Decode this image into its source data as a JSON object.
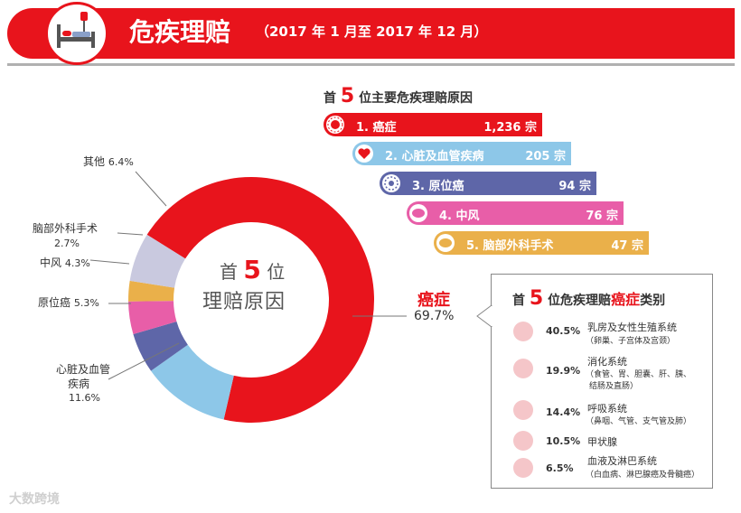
{
  "header": {
    "title": "危疾理赔",
    "subtitle": "（2017 年 1 月至 2017 年 12 月）"
  },
  "top5": {
    "title_pre": "首",
    "title_num": "5",
    "title_post": "位主要危疾理赔原因",
    "items": [
      {
        "label": "1. 癌症",
        "value": "1,236 宗",
        "color": "#e8141c"
      },
      {
        "label": "2. 心脏及血管疾病",
        "value": "205 宗",
        "color": "#8dc7e8"
      },
      {
        "label": "3. 原位癌",
        "value": "94 宗",
        "color": "#5e66a8"
      },
      {
        "label": "4. 中风",
        "value": "76 宗",
        "color": "#e85ea8"
      },
      {
        "label": "5. 脑部外科手术",
        "value": "47 宗",
        "color": "#eab04a"
      }
    ]
  },
  "donut": {
    "center_pre": "首",
    "center_num": "5",
    "center_post": "位",
    "center_line2": "理赔原因"
  },
  "chart_data": {
    "type": "pie",
    "categories": [
      "癌症",
      "心脏及血管疾病",
      "原位癌",
      "中风",
      "脑部外科手术",
      "其他"
    ],
    "values": [
      69.7,
      11.6,
      5.3,
      4.3,
      2.7,
      6.4
    ],
    "colors": [
      "#e8141c",
      "#8dc7e8",
      "#5e66a8",
      "#e85ea8",
      "#eab04a",
      "#c9c9df"
    ],
    "labels": {
      "cancer_name": "癌症",
      "cancer_pct": "69.7%",
      "heart_name_1": "心脏及血管",
      "heart_name_2": "疾病",
      "heart_pct": "11.6%",
      "insitu": "原位癌",
      "insitu_pct": "5.3%",
      "stroke": "中风",
      "stroke_pct": "4.3%",
      "brain": "脑部外科手术",
      "brain_pct": "2.7%",
      "other": "其他",
      "other_pct": "6.4%"
    }
  },
  "cancer_panel": {
    "title_pre": "首",
    "title_num": "5",
    "title_mid": "位危疾理赔",
    "title_hl": "癌症",
    "title_post": "类别",
    "rows": [
      {
        "pct": "40.5%",
        "name": "乳房及女性生殖系统",
        "sub1": "（卵巢、子宫体及宫颈）",
        "sub2": ""
      },
      {
        "pct": "19.9%",
        "name": "消化系统",
        "sub1": "（食管、胃、胆囊、肝、胰、",
        "sub2": "结肠及直肠）"
      },
      {
        "pct": "14.4%",
        "name": "呼吸系统",
        "sub1": "（鼻咽、气管、支气管及肺）",
        "sub2": ""
      },
      {
        "pct": "10.5%",
        "name": "甲状腺",
        "sub1": "",
        "sub2": ""
      },
      {
        "pct": "6.5%",
        "name": "血液及淋巴系统",
        "sub1": "（白血病、淋巴腺癌及骨髓癌）",
        "sub2": ""
      }
    ]
  },
  "watermark": "大数跨境"
}
